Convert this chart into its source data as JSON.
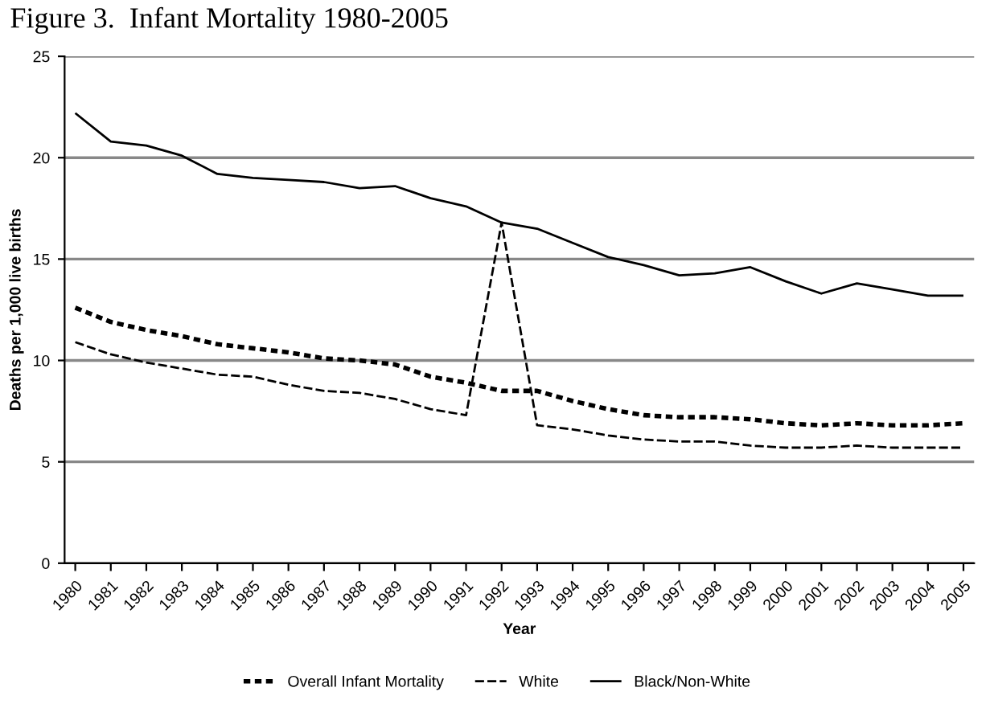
{
  "chart_data": {
    "type": "line",
    "title": "Figure 3.  Infant Mortality 1980-2005",
    "xlabel": "Year",
    "ylabel": "Deaths per 1,000 live births",
    "categories": [
      "1980",
      "1981",
      "1982",
      "1983",
      "1984",
      "1985",
      "1986",
      "1987",
      "1988",
      "1989",
      "1990",
      "1991",
      "1992",
      "1993",
      "1994",
      "1995",
      "1996",
      "1997",
      "1998",
      "1999",
      "2000",
      "2001",
      "2002",
      "2003",
      "2004",
      "2005"
    ],
    "series": [
      {
        "name": "Overall Infant Mortality",
        "color": "#000000",
        "line_style": "dotted",
        "values": [
          12.6,
          11.9,
          11.5,
          11.2,
          10.8,
          10.6,
          10.4,
          10.1,
          10.0,
          9.8,
          9.2,
          8.9,
          8.5,
          8.5,
          8.0,
          7.6,
          7.3,
          7.2,
          7.2,
          7.1,
          6.9,
          6.8,
          6.9,
          6.8,
          6.8,
          6.9
        ]
      },
      {
        "name": "White",
        "color": "#000000",
        "line_style": "dashed",
        "values": [
          10.9,
          10.3,
          9.9,
          9.6,
          9.3,
          9.2,
          8.8,
          8.5,
          8.4,
          8.1,
          7.6,
          7.3,
          16.8,
          6.8,
          6.6,
          6.3,
          6.1,
          6.0,
          6.0,
          5.8,
          5.7,
          5.7,
          5.8,
          5.7,
          5.7,
          5.7
        ]
      },
      {
        "name": "Black/Non-White",
        "color": "#000000",
        "line_style": "solid",
        "values": [
          22.2,
          20.8,
          20.6,
          20.1,
          19.2,
          19.0,
          18.9,
          18.8,
          18.5,
          18.6,
          18.0,
          17.6,
          16.8,
          16.5,
          15.8,
          15.1,
          14.7,
          14.2,
          14.3,
          14.6,
          13.9,
          13.3,
          13.8,
          13.5,
          13.2,
          13.2
        ]
      }
    ],
    "ylim": [
      0,
      25
    ],
    "yticks": [
      0,
      5,
      10,
      15,
      20,
      25
    ],
    "grid": "y",
    "legend": "bottom",
    "marker": "none"
  }
}
